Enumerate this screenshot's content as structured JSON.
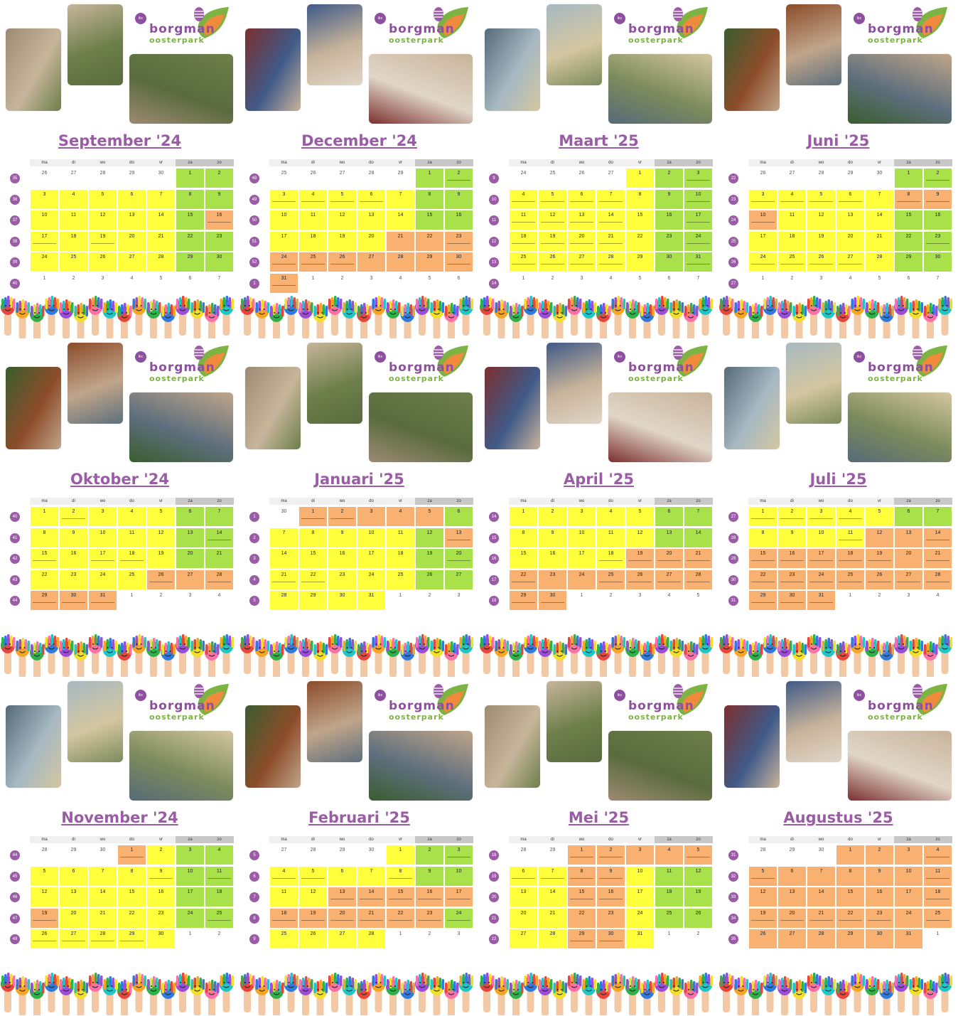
{
  "school": {
    "tag": "ikc",
    "name": "borgman",
    "sub": "oosterpark"
  },
  "weekdays": [
    "ma",
    "di",
    "wo",
    "do",
    "vr",
    "za",
    "zo"
  ],
  "colors": {
    "school": "#ffff3b",
    "weekend": "#a9e14a",
    "vacation": "#f9b171",
    "outside": "#ffffff",
    "accent": "#9b5ca6"
  },
  "hands_icon": "painted-hands-banner",
  "months": [
    {
      "title": "September '24",
      "weeks": [
        35,
        36,
        37,
        38,
        39,
        40
      ],
      "start": 26,
      "prev_len": 31,
      "days": 30,
      "first_dow": 6,
      "vac": [
        16
      ],
      "notes": [
        16,
        17,
        19
      ]
    },
    {
      "title": "Oktober '24",
      "weeks": [
        40,
        41,
        42,
        43,
        44
      ],
      "start": 30,
      "prev_len": 30,
      "days": 31,
      "first_dow": 1,
      "vac": [
        26,
        27,
        28,
        29,
        30,
        31
      ],
      "notes": [
        2,
        14,
        15,
        17,
        18,
        26,
        28,
        29,
        30,
        31
      ]
    },
    {
      "title": "November '24",
      "weeks": [
        44,
        45,
        46,
        47,
        48
      ],
      "start": 28,
      "prev_len": 31,
      "days": 30,
      "first_dow": 4,
      "vac": [
        1,
        19
      ],
      "notes": [
        1,
        9,
        11,
        19,
        25,
        26,
        27,
        28,
        29
      ]
    },
    {
      "title": "December '24",
      "weeks": [
        48,
        49,
        50,
        51,
        52,
        1
      ],
      "start": 25,
      "prev_len": 30,
      "days": 31,
      "first_dow": 6,
      "vac": [
        21,
        22,
        23,
        24,
        25,
        26,
        27,
        28,
        29,
        30,
        31
      ],
      "notes": [
        2,
        3,
        4,
        5,
        6,
        23,
        24,
        25,
        26,
        30,
        31
      ]
    },
    {
      "title": "Januari '25",
      "weeks": [
        1,
        2,
        3,
        4,
        5
      ],
      "start": 30,
      "prev_len": 31,
      "days": 31,
      "first_dow": 2,
      "vac": [
        1,
        2,
        3,
        4,
        5,
        13
      ],
      "notes": [
        1,
        2,
        13,
        20,
        21,
        22
      ]
    },
    {
      "title": "Februari '25",
      "weeks": [
        5,
        6,
        7,
        8,
        9
      ],
      "start": 27,
      "prev_len": 31,
      "days": 28,
      "first_dow": 5,
      "vac": [
        13,
        14,
        15,
        16,
        17,
        18,
        19,
        20,
        21,
        22,
        23
      ],
      "notes": [
        3,
        4,
        5,
        8,
        13,
        14,
        15,
        16,
        17,
        18,
        19,
        20,
        21,
        22,
        23,
        24
      ]
    },
    {
      "title": "Maart '25",
      "weeks": [
        9,
        10,
        11,
        12,
        13,
        14
      ],
      "start": 24,
      "prev_len": 28,
      "days": 31,
      "first_dow": 5,
      "vac": [],
      "notes": [
        3,
        4,
        5,
        6,
        7,
        10,
        11,
        12,
        13,
        14,
        17,
        18,
        19,
        20,
        21,
        24,
        25,
        26,
        27,
        28,
        31
      ]
    },
    {
      "title": "April '25",
      "weeks": [
        14,
        15,
        16,
        17,
        18
      ],
      "start": 31,
      "prev_len": 31,
      "days": 30,
      "first_dow": 1,
      "vac": [
        19,
        20,
        21,
        22,
        23,
        24,
        25,
        26,
        27,
        28,
        29,
        30
      ],
      "notes": [
        18,
        19,
        20,
        21,
        22,
        25,
        26,
        27,
        28,
        29,
        30
      ]
    },
    {
      "title": "Mei '25",
      "weeks": [
        18,
        19,
        20,
        21,
        22
      ],
      "start": 28,
      "prev_len": 30,
      "days": 31,
      "first_dow": 3,
      "vac": [
        1,
        2,
        3,
        4,
        5,
        8,
        9,
        15,
        16,
        22,
        23,
        29,
        30
      ],
      "notes": [
        1,
        2,
        5,
        6,
        7,
        8,
        9,
        15,
        16,
        29,
        30
      ]
    },
    {
      "title": "Juni '25",
      "weeks": [
        22,
        23,
        24,
        25,
        26,
        27
      ],
      "start": 26,
      "prev_len": 31,
      "days": 30,
      "first_dow": 6,
      "vac": [
        8,
        9,
        10
      ],
      "notes": [
        2,
        3,
        4,
        5,
        6,
        8,
        9,
        10,
        23,
        24,
        25,
        26,
        27
      ]
    },
    {
      "title": "Juli '25",
      "weeks": [
        27,
        28,
        29,
        30,
        31
      ],
      "start": 30,
      "prev_len": 30,
      "days": 31,
      "first_dow": 1,
      "vac": [
        12,
        13,
        14,
        15,
        16,
        17,
        18,
        19,
        20,
        21,
        22,
        23,
        24,
        25,
        26,
        27,
        28,
        29,
        30,
        31
      ],
      "notes": [
        1,
        2,
        3,
        4,
        11,
        14,
        15,
        16,
        17,
        18,
        19,
        21,
        22,
        23,
        24,
        25,
        26,
        27,
        28,
        29,
        30,
        31
      ]
    },
    {
      "title": "Augustus '25",
      "weeks": [
        31,
        32,
        33,
        34,
        35
      ],
      "start": 28,
      "prev_len": 31,
      "days": 31,
      "first_dow": 4,
      "vac": [
        1,
        2,
        3,
        4,
        5,
        6,
        7,
        8,
        9,
        10,
        11,
        12,
        13,
        14,
        15,
        16,
        17,
        18,
        19,
        20,
        21,
        22,
        23,
        24,
        25,
        26,
        27,
        28,
        29,
        30,
        31
      ],
      "notes": [
        4,
        5,
        11,
        18,
        19,
        20,
        21,
        22,
        23,
        25
      ]
    }
  ]
}
